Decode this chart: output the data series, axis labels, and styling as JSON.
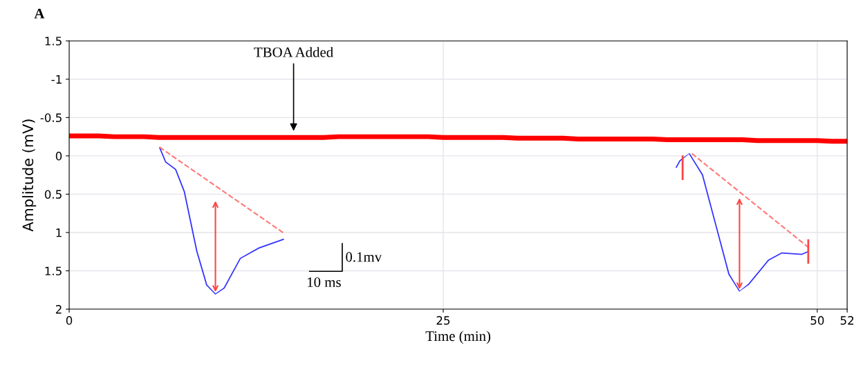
{
  "chart_data": {
    "type": "line",
    "title": "A",
    "xlabel": "Time (min)",
    "ylabel": "Amplitude (mV)",
    "x": [
      0,
      1,
      2,
      3,
      4,
      5,
      6,
      7,
      8,
      9,
      10,
      11,
      12,
      13,
      14,
      15,
      16,
      17,
      18,
      19,
      20,
      21,
      22,
      23,
      24,
      25,
      26,
      27,
      28,
      29,
      30,
      31,
      32,
      33,
      34,
      35,
      36,
      37,
      38,
      39,
      40,
      41,
      42,
      43,
      44,
      45,
      46,
      47,
      48,
      49,
      50,
      51,
      52
    ],
    "series": [
      {
        "color": "#ff0000",
        "values": [
          -0.26,
          -0.26,
          -0.26,
          -0.25,
          -0.25,
          -0.25,
          -0.24,
          -0.24,
          -0.24,
          -0.24,
          -0.24,
          -0.24,
          -0.24,
          -0.24,
          -0.24,
          -0.24,
          -0.24,
          -0.24,
          -0.25,
          -0.25,
          -0.25,
          -0.25,
          -0.25,
          -0.25,
          -0.25,
          -0.24,
          -0.24,
          -0.24,
          -0.24,
          -0.24,
          -0.23,
          -0.23,
          -0.23,
          -0.23,
          -0.22,
          -0.22,
          -0.22,
          -0.22,
          -0.22,
          -0.22,
          -0.21,
          -0.21,
          -0.21,
          -0.21,
          -0.21,
          -0.21,
          -0.2,
          -0.2,
          -0.2,
          -0.2,
          -0.2,
          -0.19,
          -0.19
        ]
      }
    ],
    "xlim": [
      0,
      52
    ],
    "xticks": [
      0,
      25,
      50,
      52
    ],
    "ylim": [
      2,
      -1.5
    ],
    "yticks": [
      {
        "value": -1.5,
        "label": "1.5"
      },
      {
        "value": -1,
        "label": "-1"
      },
      {
        "value": -0.5,
        "label": "-0.5"
      },
      {
        "value": 0,
        "label": "0"
      },
      {
        "value": 0.5,
        "label": "0.5"
      },
      {
        "value": 1,
        "label": "1"
      },
      {
        "value": 1.5,
        "label": "1.5"
      },
      {
        "value": 2,
        "label": "2"
      }
    ],
    "grid": true,
    "marker": "none",
    "line_style": "solid",
    "annotations": [
      {
        "text": "TBOA Added",
        "x": 15,
        "y": -0.3
      },
      "0.1mv",
      "10 ms"
    ]
  }
}
